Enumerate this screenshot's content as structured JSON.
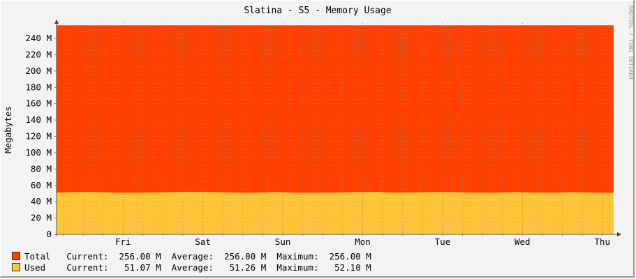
{
  "chart_data": {
    "type": "area",
    "title": "Slatina - S5 - Memory Usage",
    "ylabel": "Megabytes",
    "watermark": "RRDTOOL / TOBI OETIKER",
    "ylim": [
      0,
      256
    ],
    "y_ticks": [
      "0",
      "20 M",
      "40 M",
      "60 M",
      "80 M",
      "100 M",
      "120 M",
      "140 M",
      "160 M",
      "180 M",
      "200 M",
      "220 M",
      "240 M"
    ],
    "x_ticks": [
      "Fri",
      "Sat",
      "Sun",
      "Mon",
      "Tue",
      "Wed",
      "Thu"
    ],
    "grid": true,
    "colors": {
      "total": "#ff4000",
      "used": "#ffc63a",
      "background": "#f3f3f3",
      "axis": "#7a2020"
    },
    "series": [
      {
        "name": "Total",
        "color": "#ff4000",
        "values": [
          256,
          256,
          256,
          256,
          256,
          256,
          256,
          256,
          256,
          256,
          256,
          256,
          256,
          256,
          256,
          256,
          256,
          256,
          256,
          256,
          256,
          256,
          256,
          256,
          256,
          256,
          256,
          256,
          256
        ]
      },
      {
        "name": "Used",
        "color": "#ffc63a",
        "values": [
          51.1,
          52.0,
          51.9,
          51.2,
          51.1,
          51.3,
          51.9,
          52.1,
          51.8,
          51.2,
          51.1,
          52.0,
          51.1,
          51.1,
          51.2,
          51.8,
          52.1,
          51.2,
          51.3,
          51.9,
          51.8,
          51.2,
          51.1,
          51.9,
          51.2,
          51.1,
          51.8,
          51.2,
          51.07
        ]
      }
    ],
    "legend": [
      {
        "name": "Total",
        "current_label": "Current:",
        "current": "256.00 M",
        "average_label": "Average:",
        "average": "256.00 M",
        "maximum_label": "Maximum:",
        "maximum": "256.00 M"
      },
      {
        "name": "Used",
        "current_label": "Current:",
        "current": "51.07 M",
        "average_label": "Average:",
        "average": "51.26 M",
        "maximum_label": "Maximum:",
        "maximum": "52.10 M"
      }
    ]
  }
}
